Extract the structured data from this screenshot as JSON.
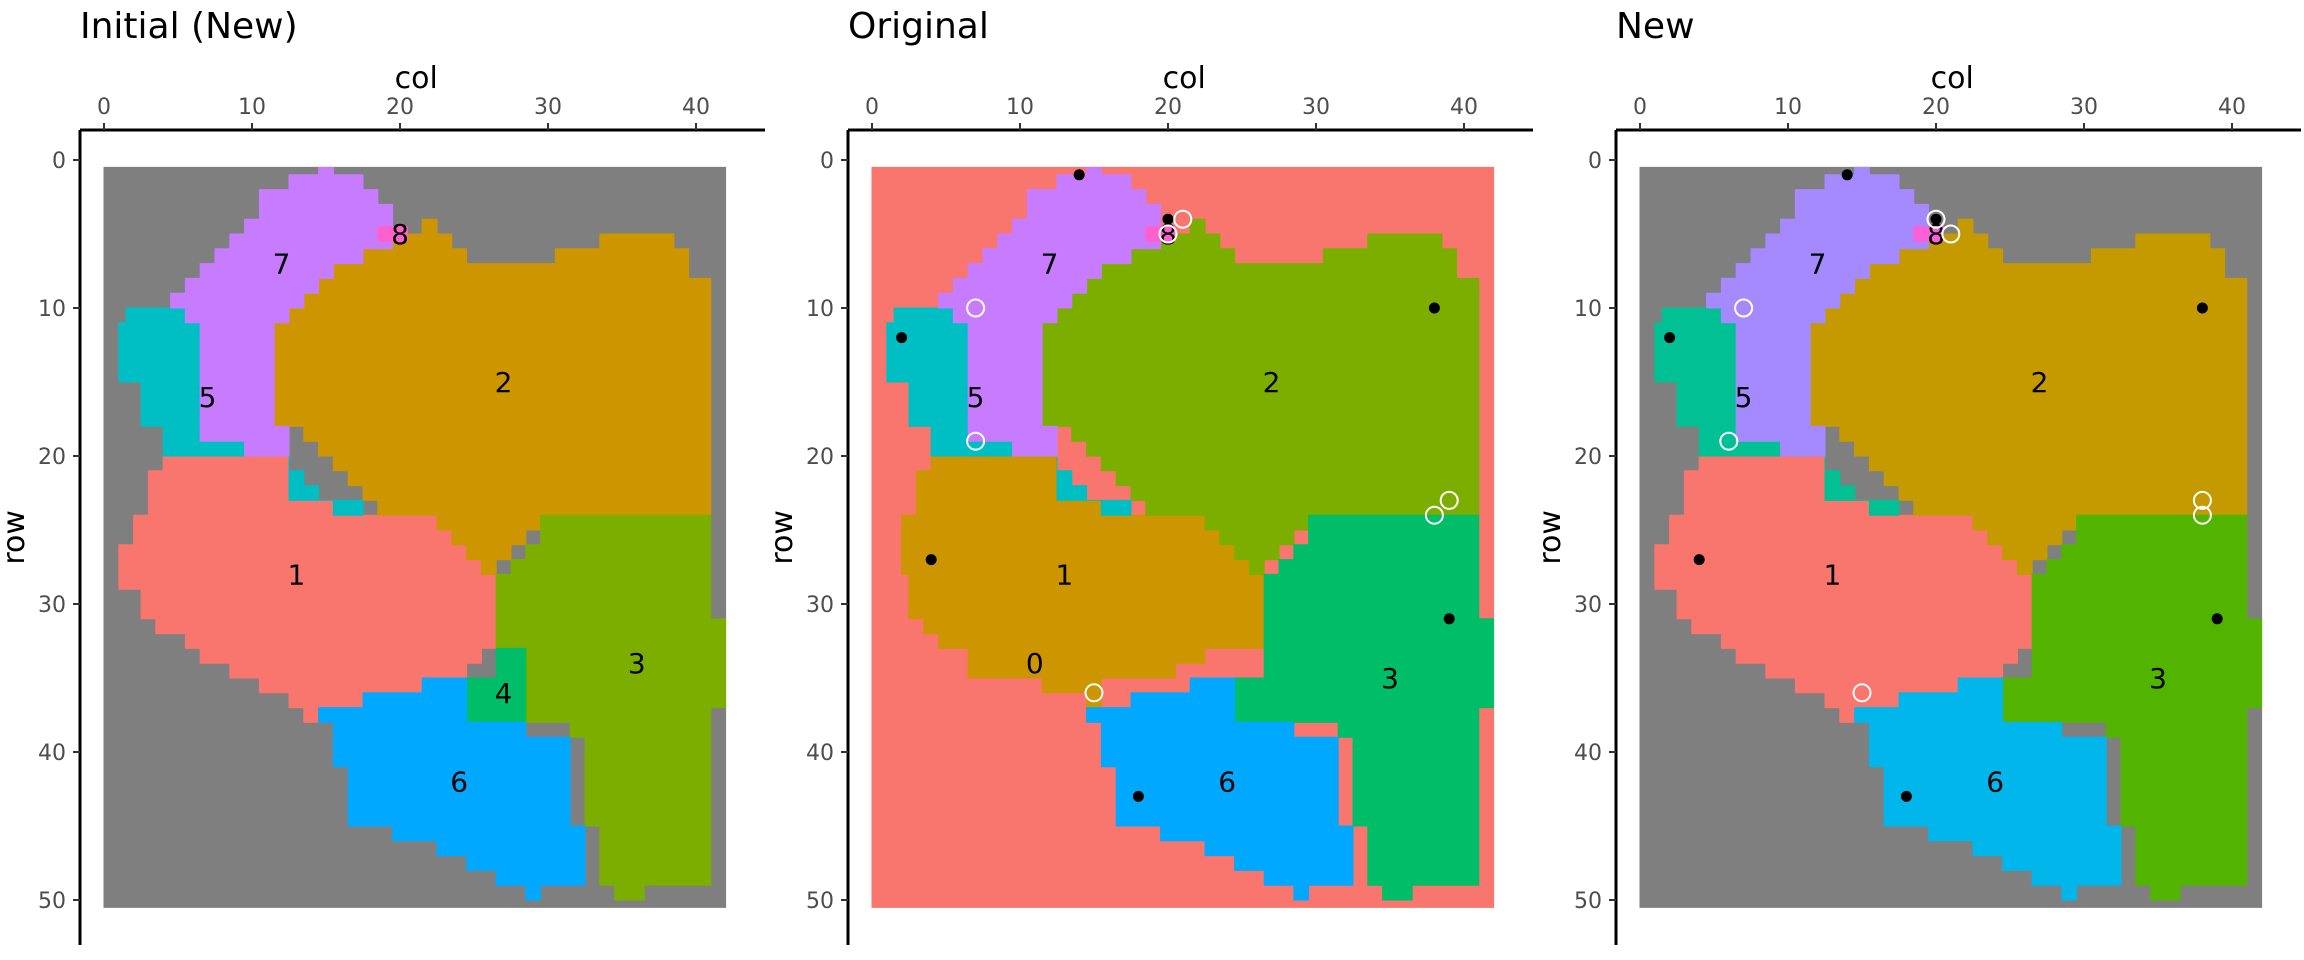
{
  "chart_data": [
    {
      "type": "heatmap",
      "title": "Initial (New)",
      "xlabel": "col",
      "ylabel": "row",
      "x_axis_position": "top",
      "y_axis_reversed": true,
      "xlim": [
        0,
        42
      ],
      "ylim": [
        0,
        50
      ],
      "xticks": [
        "0",
        "10",
        "20",
        "30",
        "40"
      ],
      "yticks": [
        "0",
        "10",
        "20",
        "30",
        "40",
        "50"
      ],
      "grid": false,
      "colors": {
        "background": "#7f7f7f",
        "1": "#f8766d",
        "2": "#cd9600",
        "3": "#7cae00",
        "4": "#00be67",
        "5": "#00bfc4",
        "6": "#00a9ff",
        "7": "#c77cff",
        "8": "#ff61cc"
      },
      "regions": [
        {
          "label": "1",
          "x": 13,
          "y": 28
        },
        {
          "label": "2",
          "x": 27,
          "y": 15
        },
        {
          "label": "3",
          "x": 36,
          "y": 34
        },
        {
          "label": "4",
          "x": 27,
          "y": 36
        },
        {
          "label": "5",
          "x": 7,
          "y": 16
        },
        {
          "label": "6",
          "x": 24,
          "y": 42
        },
        {
          "label": "7",
          "x": 12,
          "y": 7
        },
        {
          "label": "8",
          "x": 20,
          "y": 5
        }
      ],
      "points": []
    },
    {
      "type": "heatmap",
      "title": "Original",
      "xlabel": "col",
      "ylabel": "row",
      "x_axis_position": "top",
      "y_axis_reversed": true,
      "xlim": [
        0,
        42
      ],
      "ylim": [
        0,
        50
      ],
      "xticks": [
        "0",
        "10",
        "20",
        "30",
        "40"
      ],
      "yticks": [
        "0",
        "10",
        "20",
        "30",
        "40",
        "50"
      ],
      "grid": false,
      "colors": {
        "background": "#f8766d",
        "0": "#f8766d",
        "1": "#cd9600",
        "2": "#7cae00",
        "3": "#00be67",
        "4": "#00be67",
        "5": "#00bfc4",
        "6": "#00a9ff",
        "7": "#c77cff",
        "8": "#ff61cc"
      },
      "regions": [
        {
          "label": "0",
          "x": 11,
          "y": 34
        },
        {
          "label": "1",
          "x": 13,
          "y": 28
        },
        {
          "label": "2",
          "x": 27,
          "y": 15
        },
        {
          "label": "3",
          "x": 35,
          "y": 35
        },
        {
          "label": "5",
          "x": 7,
          "y": 16
        },
        {
          "label": "6",
          "x": 24,
          "y": 42
        },
        {
          "label": "7",
          "x": 12,
          "y": 7
        },
        {
          "label": "8",
          "x": 20,
          "y": 5
        }
      ],
      "points": [
        {
          "x": 14,
          "y": 1,
          "style": "filled"
        },
        {
          "x": 20,
          "y": 4,
          "style": "filled"
        },
        {
          "x": 38,
          "y": 10,
          "style": "filled"
        },
        {
          "x": 2,
          "y": 12,
          "style": "filled"
        },
        {
          "x": 4,
          "y": 27,
          "style": "filled"
        },
        {
          "x": 39,
          "y": 31,
          "style": "filled"
        },
        {
          "x": 18,
          "y": 43,
          "style": "filled"
        },
        {
          "x": 21,
          "y": 4,
          "style": "open"
        },
        {
          "x": 20,
          "y": 5,
          "style": "open"
        },
        {
          "x": 7,
          "y": 10,
          "style": "open"
        },
        {
          "x": 7,
          "y": 19,
          "style": "open"
        },
        {
          "x": 39,
          "y": 23,
          "style": "open"
        },
        {
          "x": 38,
          "y": 24,
          "style": "open"
        },
        {
          "x": 15,
          "y": 36,
          "style": "open"
        }
      ]
    },
    {
      "type": "heatmap",
      "title": "New",
      "xlabel": "col",
      "ylabel": "row",
      "x_axis_position": "top",
      "y_axis_reversed": true,
      "xlim": [
        0,
        42
      ],
      "ylim": [
        0,
        50
      ],
      "xticks": [
        "0",
        "10",
        "20",
        "30",
        "40"
      ],
      "yticks": [
        "0",
        "10",
        "20",
        "30",
        "40",
        "50"
      ],
      "grid": false,
      "colors": {
        "background": "#7f7f7f",
        "1": "#f8766d",
        "2": "#c49a00",
        "3": "#53b400",
        "4": "#53b400",
        "5": "#00c094",
        "6": "#00b6eb",
        "7": "#a58aff",
        "8": "#fb61d7"
      },
      "regions": [
        {
          "label": "1",
          "x": 13,
          "y": 28
        },
        {
          "label": "2",
          "x": 27,
          "y": 15
        },
        {
          "label": "3",
          "x": 35,
          "y": 35
        },
        {
          "label": "5",
          "x": 7,
          "y": 16
        },
        {
          "label": "6",
          "x": 24,
          "y": 42
        },
        {
          "label": "7",
          "x": 12,
          "y": 7
        },
        {
          "label": "8",
          "x": 20,
          "y": 5
        }
      ],
      "points": [
        {
          "x": 14,
          "y": 1,
          "style": "filled"
        },
        {
          "x": 20,
          "y": 4,
          "style": "filled"
        },
        {
          "x": 38,
          "y": 10,
          "style": "filled"
        },
        {
          "x": 2,
          "y": 12,
          "style": "filled"
        },
        {
          "x": 4,
          "y": 27,
          "style": "filled"
        },
        {
          "x": 39,
          "y": 31,
          "style": "filled"
        },
        {
          "x": 18,
          "y": 43,
          "style": "filled"
        },
        {
          "x": 20,
          "y": 4,
          "style": "open"
        },
        {
          "x": 21,
          "y": 5,
          "style": "open"
        },
        {
          "x": 7,
          "y": 10,
          "style": "open"
        },
        {
          "x": 6,
          "y": 19,
          "style": "open"
        },
        {
          "x": 38,
          "y": 23,
          "style": "open"
        },
        {
          "x": 38,
          "y": 24,
          "style": "open"
        },
        {
          "x": 15,
          "y": 36,
          "style": "open"
        }
      ]
    }
  ]
}
